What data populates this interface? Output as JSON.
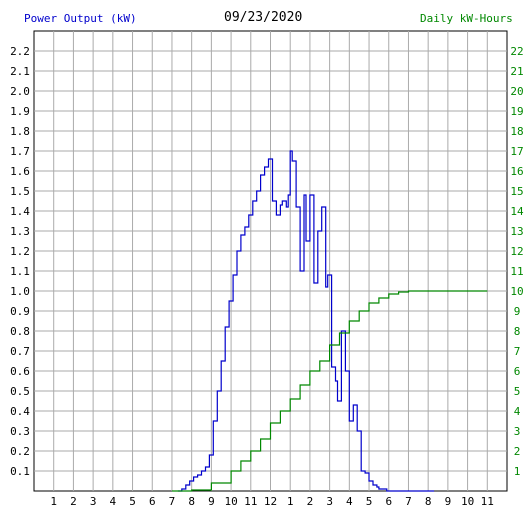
{
  "chart_data": {
    "type": "line",
    "title": "09/23/2020",
    "left_axis_label": "Power Output (kW)",
    "right_axis_label": "Daily kW-Hours",
    "x_tick_labels": [
      "1",
      "2",
      "3",
      "4",
      "5",
      "6",
      "7",
      "8",
      "9",
      "10",
      "11",
      "12",
      "1",
      "2",
      "3",
      "4",
      "5",
      "6",
      "7",
      "8",
      "9",
      "10",
      "11"
    ],
    "x_range_hours": [
      0,
      24
    ],
    "y_left_ticks": [
      "0.1",
      "0.2",
      "0.3",
      "0.4",
      "0.5",
      "0.6",
      "0.7",
      "0.8",
      "0.9",
      "1.0",
      "1.1",
      "1.2",
      "1.3",
      "1.4",
      "1.5",
      "1.6",
      "1.7",
      "1.8",
      "1.9",
      "2.0",
      "2.1",
      "2.2"
    ],
    "y_right_ticks": [
      "1",
      "2",
      "3",
      "4",
      "5",
      "6",
      "7",
      "8",
      "9",
      "10",
      "11",
      "12",
      "13",
      "14",
      "15",
      "16",
      "17",
      "18",
      "19",
      "20",
      "21",
      "22"
    ],
    "ylim_left": [
      0,
      2.3
    ],
    "ylim_right": [
      0,
      23
    ],
    "grid": true,
    "series": [
      {
        "axis": "left",
        "color": "#0000cc",
        "x": [
          7.3,
          7.5,
          7.7,
          7.9,
          8.1,
          8.3,
          8.5,
          8.7,
          8.9,
          9.1,
          9.3,
          9.5,
          9.7,
          9.9,
          10.1,
          10.3,
          10.5,
          10.7,
          10.9,
          11.1,
          11.3,
          11.5,
          11.7,
          11.9,
          12.1,
          12.3,
          12.5,
          12.6,
          12.8,
          12.9,
          13.0,
          13.1,
          13.3,
          13.5,
          13.7,
          13.8,
          14.0,
          14.2,
          14.4,
          14.6,
          14.8,
          14.9,
          15.1,
          15.3,
          15.4,
          15.6,
          15.8,
          16.0,
          16.2,
          16.4,
          16.6,
          16.8,
          17.0,
          17.2,
          17.4,
          17.5,
          17.7,
          17.9,
          18.1,
          18.3,
          18.5,
          18.7,
          18.9,
          19.1,
          19.3,
          19.5,
          19.7,
          19.9,
          20.1,
          20.3
        ],
        "y": [
          0.0,
          0.01,
          0.03,
          0.05,
          0.07,
          0.08,
          0.1,
          0.12,
          0.18,
          0.35,
          0.5,
          0.65,
          0.82,
          0.95,
          1.08,
          1.2,
          1.28,
          1.32,
          1.38,
          1.45,
          1.5,
          1.58,
          1.62,
          1.66,
          1.45,
          1.38,
          1.43,
          1.45,
          1.42,
          1.48,
          1.7,
          1.65,
          1.42,
          1.1,
          1.48,
          1.25,
          1.48,
          1.04,
          1.3,
          1.42,
          1.02,
          1.08,
          0.62,
          0.55,
          0.45,
          0.8,
          0.6,
          0.35,
          0.43,
          0.3,
          0.1,
          0.09,
          0.05,
          0.03,
          0.02,
          0.01,
          0.01,
          0.0,
          0.0,
          0.0,
          0.0,
          0.0,
          0.0,
          0.0,
          0.0,
          0.0,
          0.0,
          0.0,
          0.0,
          0.0
        ]
      },
      {
        "axis": "right",
        "color": "#008800",
        "x": [
          7.0,
          8.0,
          9.0,
          10.0,
          10.5,
          11.0,
          11.5,
          12.0,
          12.5,
          13.0,
          13.5,
          14.0,
          14.5,
          15.0,
          15.5,
          16.0,
          16.5,
          17.0,
          17.5,
          18.0,
          18.5,
          19.0,
          20.0,
          22.0,
          23.0
        ],
        "y": [
          0.0,
          0.05,
          0.4,
          1.0,
          1.5,
          2.0,
          2.6,
          3.4,
          4.0,
          4.6,
          5.3,
          6.0,
          6.5,
          7.3,
          7.9,
          8.5,
          9.0,
          9.4,
          9.65,
          9.85,
          9.95,
          10.0,
          10.0,
          10.0,
          10.0
        ]
      }
    ]
  }
}
